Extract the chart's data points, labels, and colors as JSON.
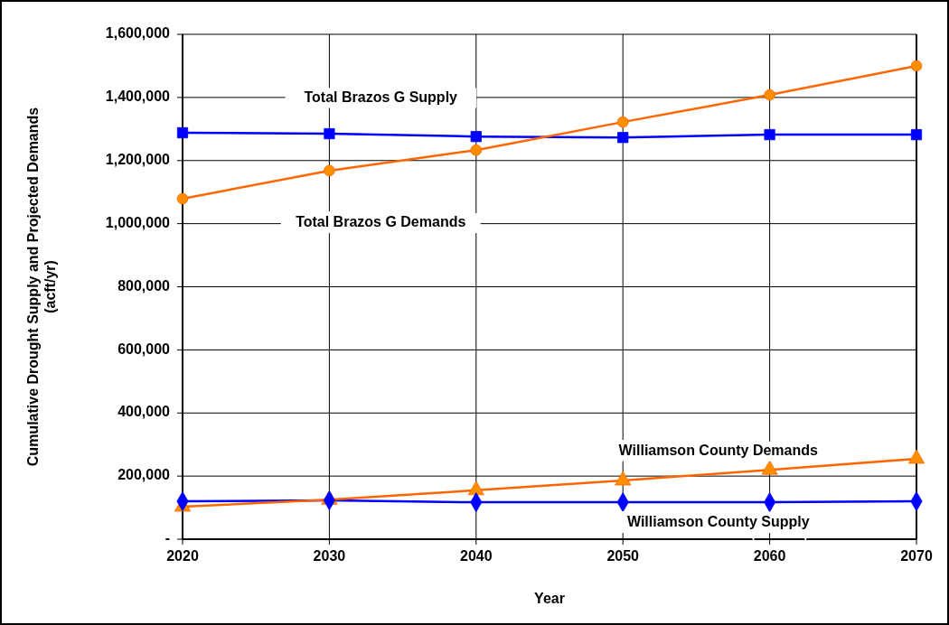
{
  "chart_data": {
    "type": "line",
    "xlabel": "Year",
    "ylabel": "Cumulative Drought Supply and Projected Demands\n(acft/yr)",
    "x": [
      2020,
      2030,
      2040,
      2050,
      2060,
      2070
    ],
    "xlim": [
      2020,
      2070
    ],
    "xticks": [
      2020,
      2030,
      2040,
      2050,
      2060,
      2070
    ],
    "ylim": [
      0,
      1600000
    ],
    "yticks": [
      {
        "value": 0,
        "label": "-"
      },
      {
        "value": 200000,
        "label": "200,000"
      },
      {
        "value": 400000,
        "label": "400,000"
      },
      {
        "value": 600000,
        "label": "600,000"
      },
      {
        "value": 800000,
        "label": "800,000"
      },
      {
        "value": 1000000,
        "label": "1,000,000"
      },
      {
        "value": 1200000,
        "label": "1,200,000"
      },
      {
        "value": 1400000,
        "label": "1,400,000"
      },
      {
        "value": 1600000,
        "label": "1,600,000"
      }
    ],
    "grid": true,
    "line_style": "solid",
    "series": [
      {
        "name": "Total Brazos G Supply",
        "color": "#0000ff",
        "marker": "square",
        "values": [
          1288000,
          1285000,
          1276000,
          1273000,
          1282000,
          1282000
        ]
      },
      {
        "name": "Total Brazos G Demands",
        "color": "#ff6600",
        "marker": "circle",
        "values": [
          1079000,
          1168000,
          1233000,
          1322000,
          1408000,
          1500000
        ]
      },
      {
        "name": "Williamson County Supply",
        "color": "#0000ff",
        "marker": "diamond",
        "values": [
          120000,
          123000,
          117000,
          117000,
          117000,
          120000
        ]
      },
      {
        "name": "Williamson County Demands",
        "color": "#ff6600",
        "marker": "triangle",
        "values": [
          103000,
          125000,
          155000,
          186000,
          220000,
          255000
        ]
      }
    ]
  }
}
